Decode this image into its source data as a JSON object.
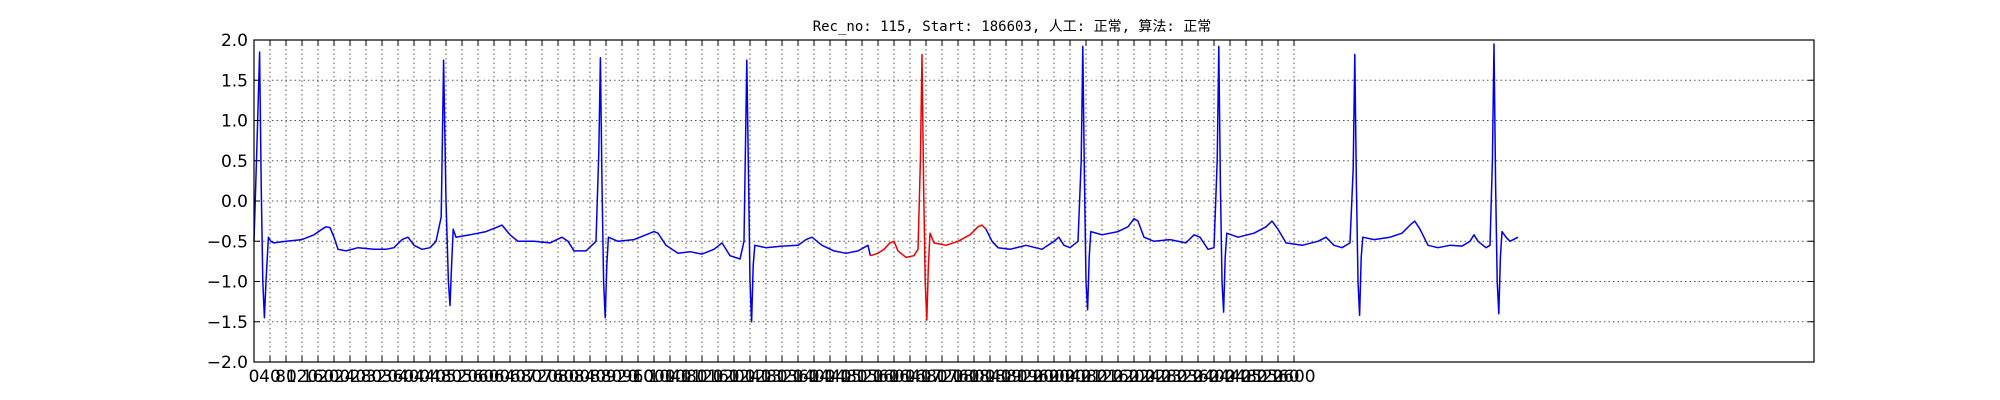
{
  "chart_data": {
    "type": "line",
    "title": "Rec_no: 115, Start: 186603, 人工: 正常, 算法: 正常",
    "xlabel": "",
    "ylabel": "",
    "xlim": [
      0,
      3900
    ],
    "ylim": [
      -2.0,
      2.0
    ],
    "y_ticks": [
      "2.0",
      "1.5",
      "1.0",
      "0.5",
      "0.0",
      "−0.5",
      "−1.0",
      "−1.5",
      "−2.0"
    ],
    "x_tick_labels": [
      "0",
      "40",
      "80",
      "120",
      "160",
      "200",
      "240",
      "280",
      "320",
      "360",
      "400",
      "440",
      "480",
      "520",
      "560",
      "600",
      "640",
      "680",
      "720",
      "760",
      "800",
      "840",
      "880",
      "920",
      "960",
      "1000",
      "1040",
      "1080",
      "1120",
      "1160",
      "1200",
      "1240",
      "1280",
      "1320",
      "1360",
      "1400",
      "1440",
      "1480",
      "1520",
      "1560",
      "1600",
      "1640",
      "1680",
      "1720",
      "1760",
      "1800",
      "1840",
      "1880",
      "1920",
      "1960",
      "2000",
      "2040",
      "2080",
      "2120",
      "2160",
      "2200",
      "2240",
      "2280",
      "2320",
      "2360",
      "2400",
      "2440",
      "2480",
      "2520",
      "2560",
      "2600"
    ],
    "grid": true,
    "colors": {
      "normal": "#0000ee",
      "highlight": "#ee0000"
    },
    "series": [
      {
        "color": "#0000ee",
        "points": [
          [
            0,
            -0.5
          ],
          [
            8,
            0.8
          ],
          [
            14,
            1.85
          ],
          [
            18,
            0.2
          ],
          [
            22,
            -1.0
          ],
          [
            26,
            -1.45
          ],
          [
            30,
            -1.0
          ],
          [
            36,
            -0.45
          ],
          [
            42,
            -0.5
          ],
          [
            50,
            -0.52
          ],
          [
            80,
            -0.5
          ],
          [
            120,
            -0.48
          ],
          [
            150,
            -0.42
          ],
          [
            170,
            -0.35
          ],
          [
            180,
            -0.32
          ],
          [
            190,
            -0.33
          ],
          [
            200,
            -0.45
          ],
          [
            210,
            -0.6
          ],
          [
            230,
            -0.62
          ],
          [
            260,
            -0.58
          ],
          [
            300,
            -0.6
          ],
          [
            330,
            -0.6
          ],
          [
            350,
            -0.58
          ],
          [
            370,
            -0.48
          ],
          [
            385,
            -0.45
          ],
          [
            400,
            -0.55
          ],
          [
            420,
            -0.6
          ],
          [
            440,
            -0.58
          ],
          [
            455,
            -0.5
          ],
          [
            468,
            -0.2
          ],
          [
            474,
            1.75
          ],
          [
            480,
            0.0
          ],
          [
            486,
            -1.0
          ],
          [
            490,
            -1.3
          ],
          [
            494,
            -0.8
          ],
          [
            498,
            -0.35
          ],
          [
            505,
            -0.45
          ],
          [
            540,
            -0.42
          ],
          [
            580,
            -0.38
          ],
          [
            610,
            -0.32
          ],
          [
            620,
            -0.3
          ],
          [
            640,
            -0.42
          ],
          [
            660,
            -0.5
          ],
          [
            700,
            -0.5
          ],
          [
            740,
            -0.52
          ],
          [
            770,
            -0.45
          ],
          [
            785,
            -0.5
          ],
          [
            800,
            -0.62
          ],
          [
            830,
            -0.62
          ],
          [
            855,
            -0.5
          ],
          [
            862,
            0.6
          ],
          [
            866,
            1.78
          ],
          [
            870,
            0.2
          ],
          [
            874,
            -1.0
          ],
          [
            878,
            -1.45
          ],
          [
            882,
            -0.8
          ],
          [
            886,
            -0.45
          ],
          [
            910,
            -0.5
          ],
          [
            950,
            -0.48
          ],
          [
            980,
            -0.42
          ],
          [
            1000,
            -0.38
          ],
          [
            1010,
            -0.4
          ],
          [
            1030,
            -0.55
          ],
          [
            1060,
            -0.65
          ],
          [
            1090,
            -0.63
          ],
          [
            1120,
            -0.66
          ],
          [
            1150,
            -0.6
          ],
          [
            1170,
            -0.52
          ],
          [
            1190,
            -0.68
          ],
          [
            1215,
            -0.72
          ],
          [
            1225,
            -0.5
          ],
          [
            1232,
            1.75
          ],
          [
            1236,
            0.4
          ],
          [
            1240,
            -1.0
          ],
          [
            1244,
            -1.5
          ],
          [
            1248,
            -0.8
          ],
          [
            1252,
            -0.55
          ],
          [
            1280,
            -0.58
          ],
          [
            1320,
            -0.56
          ],
          [
            1360,
            -0.55
          ],
          [
            1380,
            -0.48
          ],
          [
            1395,
            -0.45
          ],
          [
            1420,
            -0.55
          ],
          [
            1450,
            -0.62
          ],
          [
            1480,
            -0.65
          ],
          [
            1510,
            -0.62
          ],
          [
            1535,
            -0.55
          ],
          [
            1541,
            -0.68
          ]
        ]
      },
      {
        "color": "#ee0000",
        "points": [
          [
            1541,
            -0.68
          ],
          [
            1560,
            -0.65
          ],
          [
            1575,
            -0.6
          ],
          [
            1590,
            -0.52
          ],
          [
            1600,
            -0.5
          ],
          [
            1610,
            -0.62
          ],
          [
            1630,
            -0.7
          ],
          [
            1650,
            -0.68
          ],
          [
            1660,
            -0.6
          ],
          [
            1666,
            0.5
          ],
          [
            1670,
            1.82
          ],
          [
            1674,
            0.2
          ],
          [
            1678,
            -1.0
          ],
          [
            1682,
            -1.48
          ],
          [
            1686,
            -0.8
          ],
          [
            1690,
            -0.4
          ],
          [
            1700,
            -0.52
          ],
          [
            1730,
            -0.55
          ],
          [
            1760,
            -0.5
          ],
          [
            1790,
            -0.42
          ],
          [
            1810,
            -0.32
          ],
          [
            1820,
            -0.3
          ],
          [
            1830,
            -0.35
          ]
        ]
      },
      {
        "color": "#0000ee",
        "points": [
          [
            1830,
            -0.35
          ],
          [
            1845,
            -0.5
          ],
          [
            1860,
            -0.58
          ],
          [
            1890,
            -0.6
          ],
          [
            1930,
            -0.55
          ],
          [
            1970,
            -0.6
          ],
          [
            2000,
            -0.5
          ],
          [
            2012,
            -0.45
          ],
          [
            2025,
            -0.55
          ],
          [
            2040,
            -0.58
          ],
          [
            2060,
            -0.5
          ],
          [
            2068,
            0.5
          ],
          [
            2072,
            1.92
          ],
          [
            2076,
            0.3
          ],
          [
            2080,
            -1.0
          ],
          [
            2084,
            -1.35
          ],
          [
            2088,
            -0.7
          ],
          [
            2092,
            -0.38
          ],
          [
            2120,
            -0.42
          ],
          [
            2160,
            -0.38
          ],
          [
            2185,
            -0.32
          ],
          [
            2200,
            -0.22
          ],
          [
            2210,
            -0.25
          ],
          [
            2225,
            -0.45
          ],
          [
            2250,
            -0.5
          ],
          [
            2290,
            -0.48
          ],
          [
            2330,
            -0.52
          ],
          [
            2350,
            -0.42
          ],
          [
            2365,
            -0.45
          ],
          [
            2385,
            -0.6
          ],
          [
            2400,
            -0.58
          ],
          [
            2408,
            0.5
          ],
          [
            2412,
            1.92
          ],
          [
            2416,
            0.2
          ],
          [
            2420,
            -1.0
          ],
          [
            2424,
            -1.38
          ],
          [
            2428,
            -0.7
          ],
          [
            2432,
            -0.4
          ],
          [
            2460,
            -0.45
          ],
          [
            2500,
            -0.4
          ],
          [
            2530,
            -0.32
          ],
          [
            2545,
            -0.25
          ],
          [
            2560,
            -0.35
          ],
          [
            2580,
            -0.52
          ],
          [
            2620,
            -0.55
          ],
          [
            2660,
            -0.5
          ],
          [
            2680,
            -0.45
          ],
          [
            2700,
            -0.55
          ],
          [
            2720,
            -0.58
          ],
          [
            2740,
            -0.52
          ],
          [
            2748,
            0.4
          ],
          [
            2752,
            1.82
          ],
          [
            2756,
            0.2
          ],
          [
            2760,
            -1.0
          ],
          [
            2764,
            -1.42
          ],
          [
            2768,
            -0.7
          ],
          [
            2772,
            -0.45
          ],
          [
            2800,
            -0.48
          ],
          [
            2840,
            -0.45
          ],
          [
            2870,
            -0.4
          ],
          [
            2890,
            -0.3
          ],
          [
            2902,
            -0.25
          ],
          [
            2915,
            -0.35
          ],
          [
            2935,
            -0.55
          ],
          [
            2960,
            -0.58
          ],
          [
            2990,
            -0.55
          ],
          [
            3020,
            -0.56
          ],
          [
            3040,
            -0.5
          ],
          [
            3050,
            -0.42
          ],
          [
            3060,
            -0.5
          ],
          [
            3080,
            -0.58
          ],
          [
            3090,
            -0.55
          ],
          [
            3096,
            0.5
          ],
          [
            3100,
            1.95
          ],
          [
            3104,
            0.2
          ],
          [
            3108,
            -1.0
          ],
          [
            3112,
            -1.4
          ],
          [
            3116,
            -0.7
          ],
          [
            3120,
            -0.38
          ],
          [
            3130,
            -0.45
          ],
          [
            3140,
            -0.5
          ],
          [
            3160,
            -0.45
          ]
        ]
      }
    ]
  }
}
